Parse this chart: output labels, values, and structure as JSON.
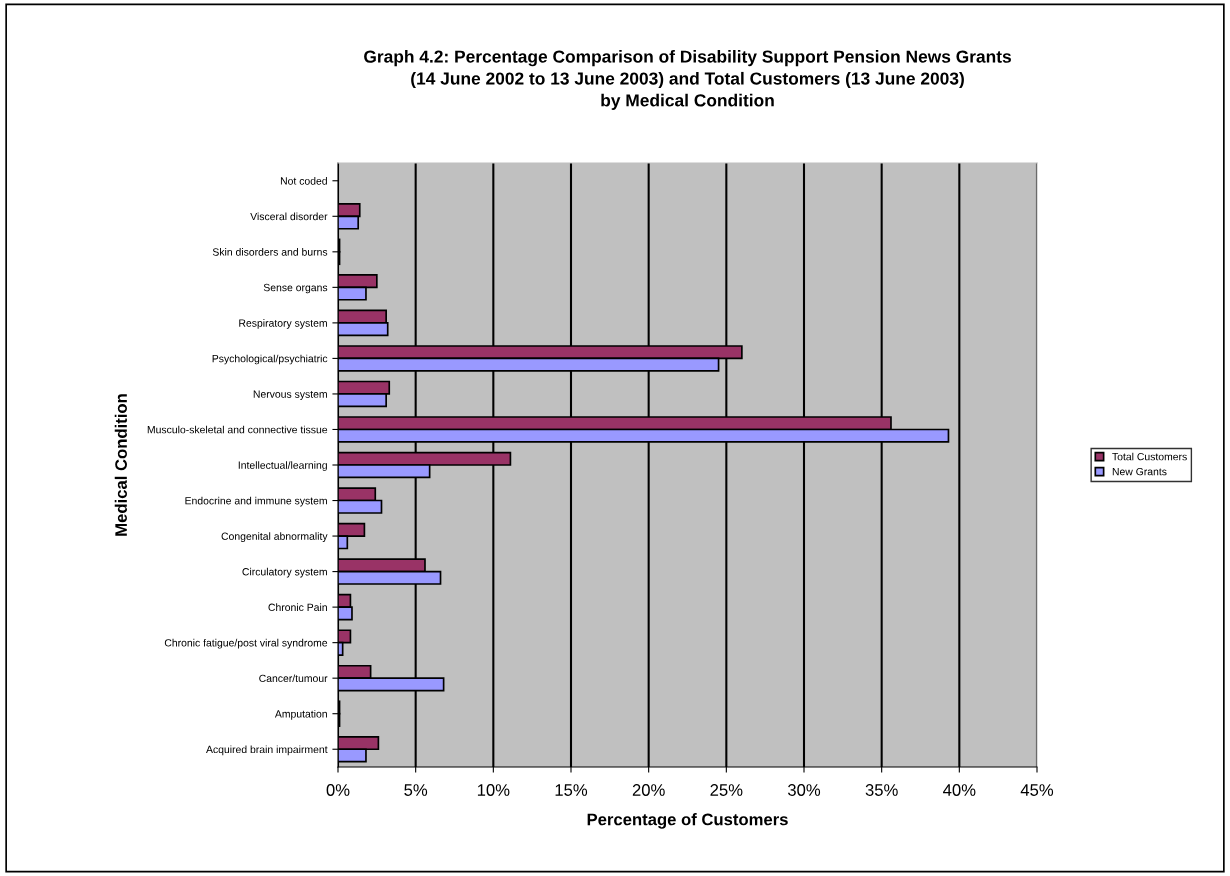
{
  "chart_data": {
    "type": "bar",
    "orientation": "horizontal",
    "title": "Graph 4.2: Percentage Comparison of Disability Support Pension News Grants\n(14 June 2002 to 13 June 2003) and Total Customers (13 June 2003)\nby Medical Condition",
    "xlabel": "Percentage of Customers",
    "ylabel": "Medical Condition",
    "categories": [
      "Not coded",
      "Visceral disorder",
      "Skin disorders and burns",
      "Sense organs",
      "Respiratory system",
      "Psychological/psychiatric",
      "Nervous system",
      "Musculo-skeletal and connective tissue",
      "Intellectual/learning",
      "Endocrine and immune system",
      "Congenital abnormality",
      "Circulatory system",
      "Chronic Pain",
      "Chronic fatigue/post viral syndrome",
      "Cancer/tumour",
      "Amputation",
      "Acquired brain impairment"
    ],
    "series": [
      {
        "name": "Total Customers",
        "color": "#993366",
        "values": [
          null,
          1.4,
          0.1,
          2.5,
          3.1,
          26.0,
          3.3,
          35.6,
          11.1,
          2.4,
          1.7,
          5.6,
          0.8,
          0.8,
          2.1,
          0.1,
          2.6
        ]
      },
      {
        "name": "New Grants",
        "color": "#9999ff",
        "values": [
          null,
          1.3,
          0.1,
          1.8,
          3.2,
          24.5,
          3.1,
          39.3,
          5.9,
          2.8,
          0.6,
          6.6,
          0.9,
          0.3,
          6.8,
          0.1,
          1.8
        ]
      }
    ],
    "xlim": [
      0,
      45
    ],
    "xticks": [
      {
        "value": 0,
        "label": "0%"
      },
      {
        "value": 5,
        "label": "5%"
      },
      {
        "value": 10,
        "label": "10%"
      },
      {
        "value": 15,
        "label": "15%"
      },
      {
        "value": 20,
        "label": "20%"
      },
      {
        "value": 25,
        "label": "25%"
      },
      {
        "value": 30,
        "label": "30%"
      },
      {
        "value": 35,
        "label": "35%"
      },
      {
        "value": 40,
        "label": "40%"
      },
      {
        "value": 45,
        "label": "45%"
      }
    ],
    "grid": "x",
    "legend": "right"
  }
}
